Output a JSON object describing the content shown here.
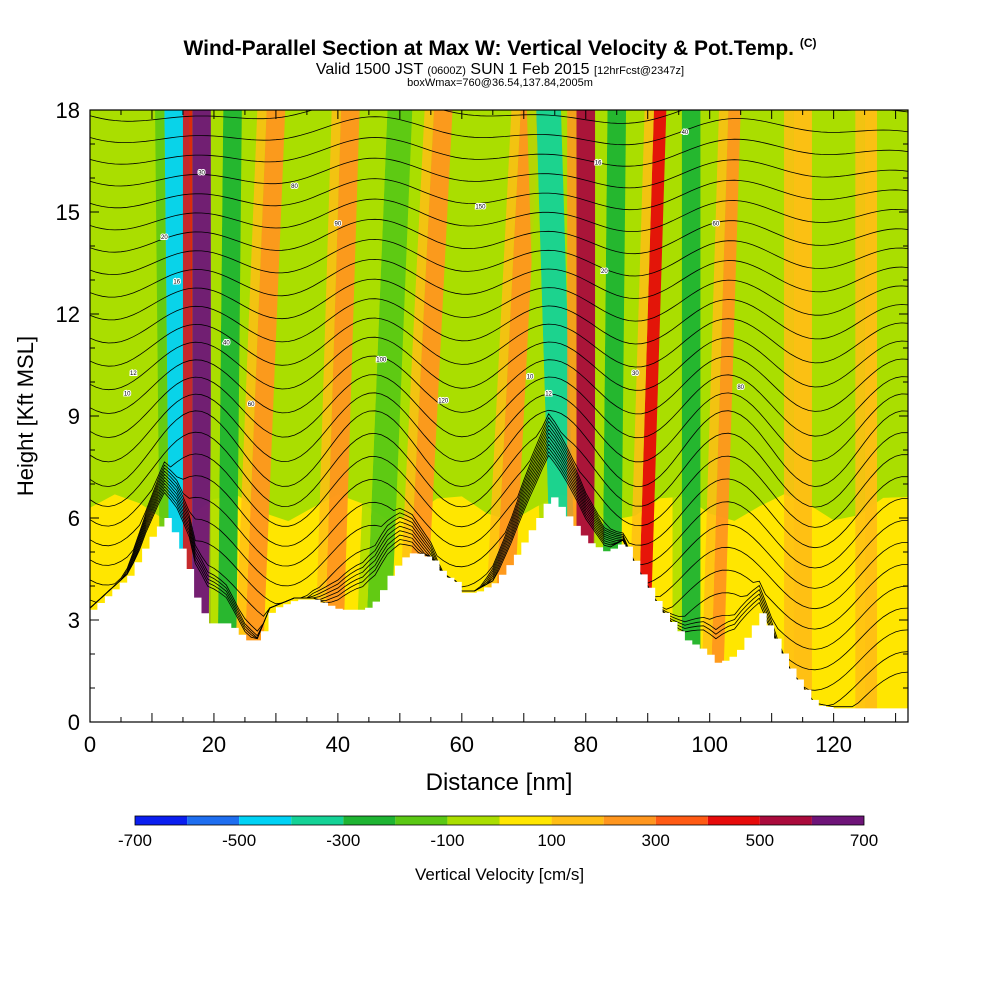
{
  "chart_data": {
    "type": "heatmap",
    "title": "Wind-Parallel Section at Max W: Vertical Velocity & Pot.Temp.",
    "title_mark": "(C)",
    "subtitle_a": "Valid 1500 JST",
    "subtitle_b": "(0600Z)",
    "subtitle_c": "SUN 1 Feb 2015",
    "subtitle_d": "[12hrFcst@2347z]",
    "subtitle2": "boxWmax=760@36.54,137.84,2005m",
    "xlabel": "Distance [nm]",
    "ylabel": "Height [Kft MSL]",
    "xlim": [
      0,
      132
    ],
    "ylim": [
      0,
      18
    ],
    "x_ticks": [
      "0",
      "20",
      "40",
      "60",
      "80",
      "100",
      "120"
    ],
    "y_ticks": [
      "0",
      "3",
      "6",
      "9",
      "12",
      "15",
      "18"
    ],
    "colorbar": {
      "label": "Vertical Velocity [cm/s]",
      "tick_labels": [
        "-700",
        "-500",
        "-300",
        "-100",
        "100",
        "300",
        "500",
        "700"
      ],
      "colors": [
        "#0a1ef0",
        "#1e6ef0",
        "#00d2f5",
        "#14d296",
        "#1eb432",
        "#5ac814",
        "#aade00",
        "#ffe600",
        "#ffbe14",
        "#ff961e",
        "#ff5a14",
        "#e60a0a",
        "#aa0a3c",
        "#6e1478"
      ]
    },
    "terrain_kft": [
      [
        0,
        3.3
      ],
      [
        3,
        3.8
      ],
      [
        6,
        4.3
      ],
      [
        9,
        5.3
      ],
      [
        11,
        5.8
      ],
      [
        12,
        6.0
      ],
      [
        14,
        5.3
      ],
      [
        16,
        4.3
      ],
      [
        17,
        3.5
      ],
      [
        19,
        2.9
      ],
      [
        22,
        2.9
      ],
      [
        25,
        2.4
      ],
      [
        27,
        2.4
      ],
      [
        29,
        3.3
      ],
      [
        33,
        3.6
      ],
      [
        36,
        3.6
      ],
      [
        40,
        3.3
      ],
      [
        44,
        3.3
      ],
      [
        46,
        3.6
      ],
      [
        48,
        4.3
      ],
      [
        50,
        4.8
      ],
      [
        52,
        5.0
      ],
      [
        55,
        4.8
      ],
      [
        57,
        4.3
      ],
      [
        59,
        4.1
      ],
      [
        60,
        3.8
      ],
      [
        62,
        3.8
      ],
      [
        65,
        4.1
      ],
      [
        68,
        4.8
      ],
      [
        70,
        5.4
      ],
      [
        72,
        6.0
      ],
      [
        74,
        6.7
      ],
      [
        77,
        6.0
      ],
      [
        80,
        5.3
      ],
      [
        83,
        5.0
      ],
      [
        86,
        5.3
      ],
      [
        88,
        4.6
      ],
      [
        92,
        3.3
      ],
      [
        96,
        2.4
      ],
      [
        99,
        2.1
      ],
      [
        101,
        1.7
      ],
      [
        104,
        2.0
      ],
      [
        106,
        2.6
      ],
      [
        108,
        3.2
      ],
      [
        110,
        2.6
      ],
      [
        113,
        1.5
      ],
      [
        115,
        1.0
      ],
      [
        117,
        0.5
      ],
      [
        120,
        0.4
      ],
      [
        132,
        0.4
      ]
    ],
    "vertical_velocity_bands": [
      {
        "x_top": 14,
        "x_bottom": 15,
        "w": 4,
        "value": -500
      },
      {
        "x_top": 18,
        "x_bottom": 18,
        "w": 3,
        "value": 700
      },
      {
        "x_top": 23,
        "x_bottom": 22,
        "w": 3,
        "value": -300
      },
      {
        "x_top": 30,
        "x_bottom": 26,
        "w": 3,
        "value": 200
      },
      {
        "x_top": 42,
        "x_bottom": 39,
        "w": 3,
        "value": 200
      },
      {
        "x_top": 50,
        "x_bottom": 46,
        "w": 4,
        "value": -150
      },
      {
        "x_top": 57,
        "x_bottom": 52,
        "w": 3,
        "value": 200
      },
      {
        "x_top": 71,
        "x_bottom": 66,
        "w": 3,
        "value": 200
      },
      {
        "x_top": 74,
        "x_bottom": 77,
        "w": 4,
        "value": -400
      },
      {
        "x_top": 80,
        "x_bottom": 80,
        "w": 3,
        "value": 500
      },
      {
        "x_top": 85,
        "x_bottom": 84,
        "w": 3,
        "value": -300
      },
      {
        "x_top": 92,
        "x_bottom": 89,
        "w": 2,
        "value": 400
      },
      {
        "x_top": 97,
        "x_bottom": 97,
        "w": 3,
        "value": -300
      },
      {
        "x_top": 104,
        "x_bottom": 101,
        "w": 2,
        "value": 200
      },
      {
        "x_top": 115,
        "x_bottom": 115,
        "w": 3,
        "value": 150
      },
      {
        "x_top": 126,
        "x_bottom": 126,
        "w": 2,
        "value": 150
      }
    ],
    "pot_temp_labels": [
      "10",
      "12",
      "16",
      "20",
      "30",
      "40",
      "60",
      "80",
      "90",
      "100",
      "120",
      "150"
    ]
  }
}
